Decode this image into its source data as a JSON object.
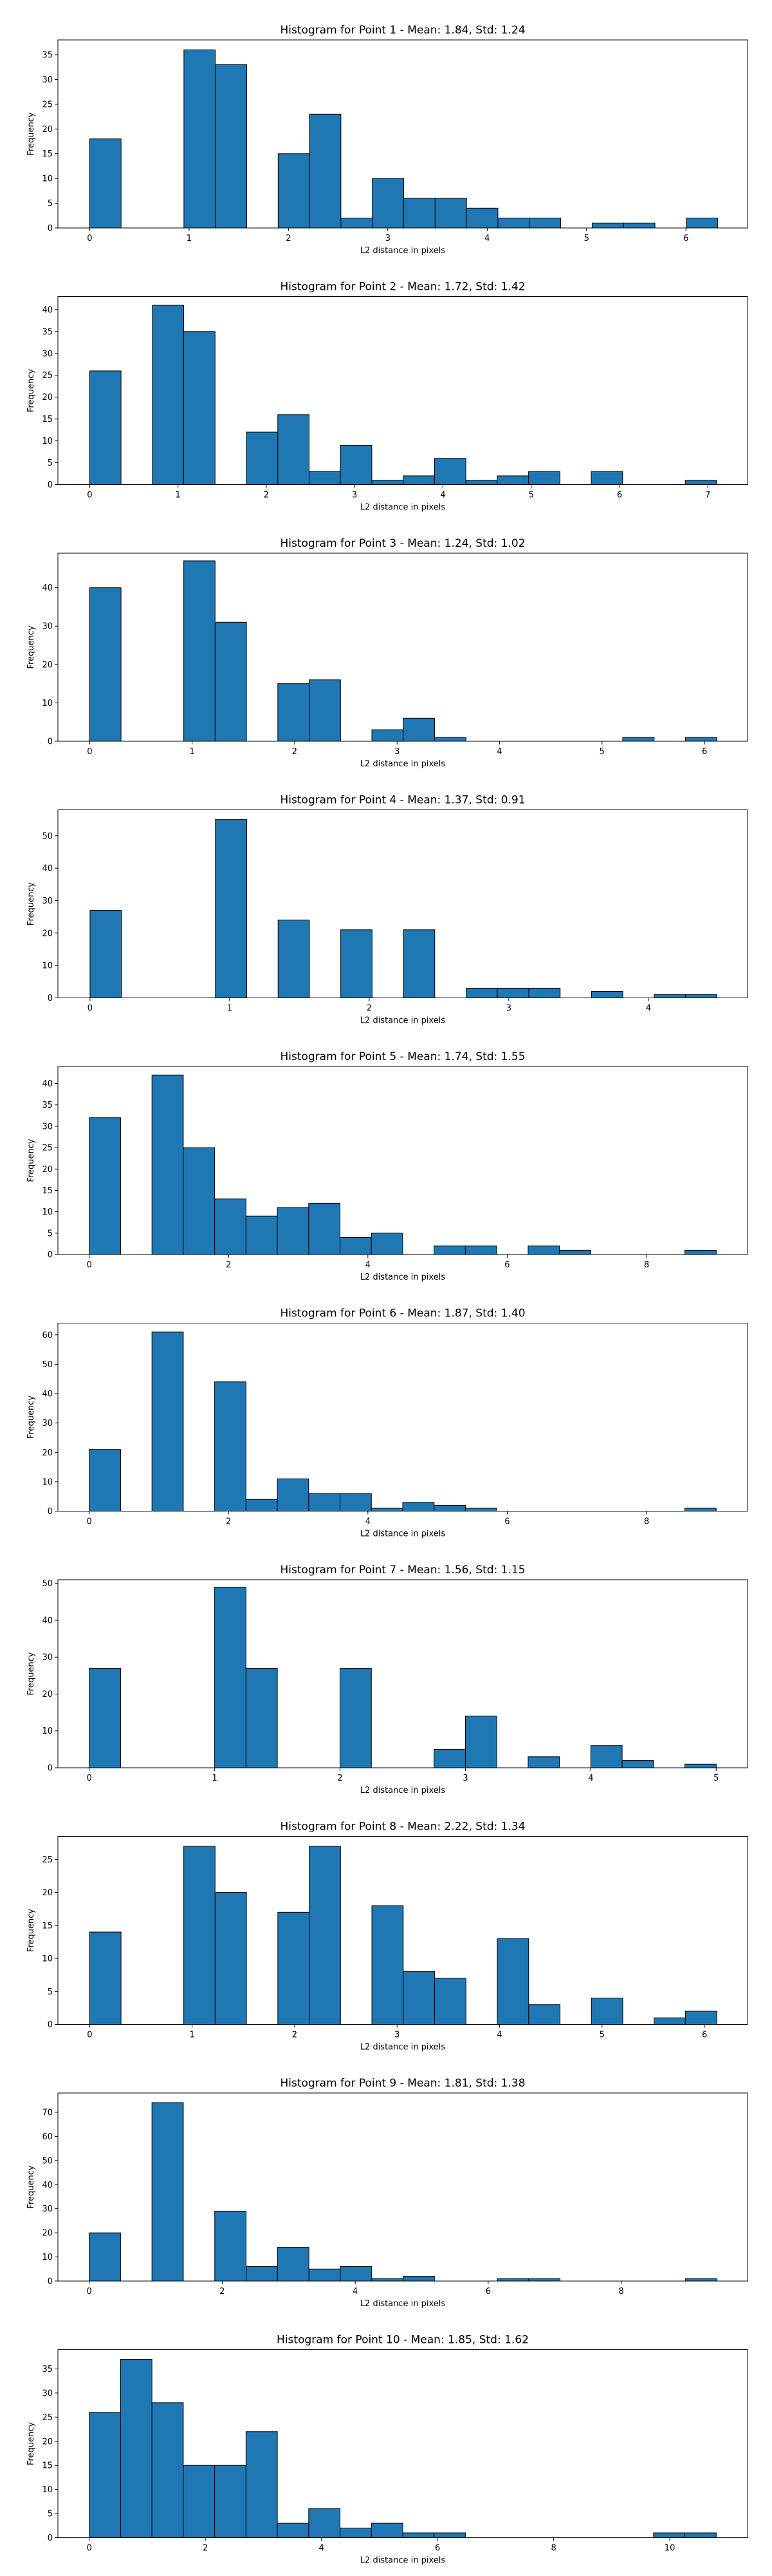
{
  "figure": {
    "bar_color": "#1f77b4",
    "edge_color": "#000000"
  },
  "chart_data": [
    {
      "type": "bar",
      "title": "Histogram for Point 1 - Mean: 1.84, Std: 1.24",
      "xlabel": "L2 distance in pixels",
      "ylabel": "Frequency",
      "xlim": [
        -0.32,
        6.62
      ],
      "ylim": [
        0,
        38
      ],
      "xticks": [
        0,
        1,
        2,
        3,
        4,
        5,
        6
      ],
      "yticks": [
        0,
        5,
        10,
        15,
        20,
        25,
        30,
        35
      ],
      "bin_edges": [
        0.0,
        0.316,
        0.632,
        0.948,
        1.264,
        1.58,
        1.896,
        2.212,
        2.528,
        2.844,
        3.16,
        3.476,
        3.792,
        4.108,
        4.424,
        4.74,
        5.056,
        5.372,
        5.688,
        6.004,
        6.32
      ],
      "values": [
        18,
        0,
        0,
        36,
        33,
        0,
        15,
        23,
        2,
        10,
        6,
        6,
        4,
        2,
        2,
        0,
        1,
        1,
        0,
        2
      ]
    },
    {
      "type": "bar",
      "title": "Histogram for Point 2 - Mean: 1.72, Std: 1.42",
      "xlabel": "L2 distance in pixels",
      "ylabel": "Frequency",
      "xlim": [
        -0.36,
        7.45
      ],
      "ylim": [
        0,
        43
      ],
      "xticks": [
        0,
        1,
        2,
        3,
        4,
        5,
        6,
        7
      ],
      "yticks": [
        0,
        5,
        10,
        15,
        20,
        25,
        30,
        35,
        40
      ],
      "bin_edges": [
        0.0,
        0.355,
        0.71,
        1.065,
        1.42,
        1.775,
        2.13,
        2.485,
        2.84,
        3.195,
        3.55,
        3.905,
        4.26,
        4.615,
        4.97,
        5.325,
        5.68,
        6.035,
        6.39,
        6.745,
        7.1
      ],
      "values": [
        26,
        0,
        41,
        35,
        0,
        12,
        16,
        3,
        9,
        1,
        2,
        6,
        1,
        2,
        3,
        0,
        3,
        0,
        0,
        1
      ]
    },
    {
      "type": "bar",
      "title": "Histogram for Point 3 - Mean: 1.24, Std: 1.02",
      "xlabel": "L2 distance in pixels",
      "ylabel": "Frequency",
      "xlim": [
        -0.31,
        6.42
      ],
      "ylim": [
        0,
        49
      ],
      "xticks": [
        0,
        1,
        2,
        3,
        4,
        5,
        6
      ],
      "yticks": [
        0,
        10,
        20,
        30,
        40
      ],
      "bin_edges": [
        0.0,
        0.306,
        0.612,
        0.918,
        1.224,
        1.53,
        1.836,
        2.142,
        2.448,
        2.754,
        3.06,
        3.366,
        3.672,
        3.978,
        4.284,
        4.59,
        4.896,
        5.202,
        5.508,
        5.814,
        6.12
      ],
      "values": [
        40,
        0,
        0,
        47,
        31,
        0,
        15,
        16,
        0,
        3,
        6,
        1,
        0,
        0,
        0,
        0,
        0,
        1,
        0,
        1
      ]
    },
    {
      "type": "bar",
      "title": "Histogram for Point 4 - Mean: 1.37, Std: 0.91",
      "xlabel": "L2 distance in pixels",
      "ylabel": "Frequency",
      "xlim": [
        -0.23,
        4.71
      ],
      "ylim": [
        0,
        58
      ],
      "xticks": [
        0,
        1,
        2,
        3,
        4
      ],
      "yticks": [
        0,
        10,
        20,
        30,
        40,
        50
      ],
      "bin_edges": [
        0.0,
        0.2245,
        0.449,
        0.6735,
        0.898,
        1.1225,
        1.347,
        1.5715,
        1.796,
        2.0205,
        2.245,
        2.4695,
        2.694,
        2.9185,
        3.143,
        3.3675,
        3.592,
        3.8165,
        4.041,
        4.2655,
        4.49
      ],
      "values": [
        27,
        0,
        0,
        0,
        55,
        0,
        24,
        0,
        21,
        0,
        21,
        0,
        3,
        3,
        3,
        0,
        2,
        0,
        1,
        1
      ]
    },
    {
      "type": "bar",
      "title": "Histogram for Point 5 - Mean: 1.74, Std: 1.55",
      "xlabel": "L2 distance in pixels",
      "ylabel": "Frequency",
      "xlim": [
        -0.45,
        9.45
      ],
      "ylim": [
        0,
        44
      ],
      "xticks": [
        0,
        2,
        4,
        6,
        8
      ],
      "yticks": [
        0,
        5,
        10,
        15,
        20,
        25,
        30,
        35,
        40
      ],
      "bin_edges": [
        0.0,
        0.45,
        0.9,
        1.35,
        1.8,
        2.25,
        2.7,
        3.15,
        3.6,
        4.05,
        4.5,
        4.95,
        5.4,
        5.85,
        6.3,
        6.75,
        7.2,
        7.65,
        8.1,
        8.55,
        9.0
      ],
      "values": [
        32,
        0,
        42,
        25,
        13,
        9,
        11,
        12,
        4,
        5,
        0,
        2,
        2,
        0,
        2,
        1,
        0,
        0,
        0,
        1
      ]
    },
    {
      "type": "bar",
      "title": "Histogram for Point 6 - Mean: 1.87, Std: 1.40",
      "xlabel": "L2 distance in pixels",
      "ylabel": "Frequency",
      "xlim": [
        -0.45,
        9.45
      ],
      "ylim": [
        0,
        64
      ],
      "xticks": [
        0,
        2,
        4,
        6,
        8
      ],
      "yticks": [
        0,
        10,
        20,
        30,
        40,
        50,
        60
      ],
      "bin_edges": [
        0.0,
        0.45,
        0.9,
        1.35,
        1.8,
        2.25,
        2.7,
        3.15,
        3.6,
        4.05,
        4.5,
        4.95,
        5.4,
        5.85,
        6.3,
        6.75,
        7.2,
        7.65,
        8.1,
        8.55,
        9.0
      ],
      "values": [
        21,
        0,
        61,
        0,
        44,
        4,
        11,
        6,
        6,
        1,
        3,
        2,
        1,
        0,
        0,
        0,
        0,
        0,
        0,
        1
      ]
    },
    {
      "type": "bar",
      "title": "Histogram for Point 7 - Mean: 1.56, Std: 1.15",
      "xlabel": "L2 distance in pixels",
      "ylabel": "Frequency",
      "xlim": [
        -0.25,
        5.25
      ],
      "ylim": [
        0,
        51
      ],
      "xticks": [
        0,
        1,
        2,
        3,
        4,
        5
      ],
      "yticks": [
        0,
        10,
        20,
        30,
        40,
        50
      ],
      "bin_edges": [
        0.0,
        0.25,
        0.5,
        0.75,
        1.0,
        1.25,
        1.5,
        1.75,
        2.0,
        2.25,
        2.5,
        2.75,
        3.0,
        3.25,
        3.5,
        3.75,
        4.0,
        4.25,
        4.5,
        4.75,
        5.0
      ],
      "values": [
        27,
        0,
        0,
        0,
        49,
        27,
        0,
        0,
        27,
        0,
        0,
        5,
        14,
        0,
        3,
        0,
        6,
        2,
        0,
        1
      ]
    },
    {
      "type": "bar",
      "title": "Histogram for Point 8 - Mean: 2.22, Std: 1.34",
      "xlabel": "L2 distance in pixels",
      "ylabel": "Frequency",
      "xlim": [
        -0.31,
        6.42
      ],
      "ylim": [
        0,
        28.5
      ],
      "xticks": [
        0,
        1,
        2,
        3,
        4,
        5,
        6
      ],
      "yticks": [
        0,
        5,
        10,
        15,
        20,
        25
      ],
      "bin_edges": [
        0.0,
        0.306,
        0.612,
        0.918,
        1.224,
        1.53,
        1.836,
        2.142,
        2.448,
        2.754,
        3.06,
        3.366,
        3.672,
        3.978,
        4.284,
        4.59,
        4.896,
        5.202,
        5.508,
        5.814,
        6.12
      ],
      "values": [
        14,
        0,
        0,
        27,
        20,
        0,
        17,
        27,
        0,
        18,
        8,
        7,
        0,
        13,
        3,
        0,
        4,
        0,
        1,
        2
      ]
    },
    {
      "type": "bar",
      "title": "Histogram for Point 9 - Mean: 1.81, Std: 1.38",
      "xlabel": "L2 distance in pixels",
      "ylabel": "Frequency",
      "xlim": [
        -0.47,
        9.9
      ],
      "ylim": [
        0,
        78
      ],
      "xticks": [
        0,
        2,
        4,
        6,
        8
      ],
      "yticks": [
        0,
        10,
        20,
        30,
        40,
        50,
        60,
        70
      ],
      "bin_edges": [
        0.0,
        0.472,
        0.944,
        1.416,
        1.888,
        2.36,
        2.832,
        3.304,
        3.776,
        4.248,
        4.72,
        5.192,
        5.664,
        6.136,
        6.608,
        7.08,
        7.552,
        8.024,
        8.496,
        8.968,
        9.44
      ],
      "values": [
        20,
        0,
        74,
        0,
        29,
        6,
        14,
        5,
        6,
        1,
        2,
        0,
        0,
        1,
        1,
        0,
        0,
        0,
        0,
        1
      ]
    },
    {
      "type": "bar",
      "title": "Histogram for Point 10 - Mean: 1.85, Std: 1.62",
      "xlabel": "L2 distance in pixels",
      "ylabel": "Frequency",
      "xlim": [
        -0.54,
        11.34
      ],
      "ylim": [
        0,
        39
      ],
      "xticks": [
        0,
        2,
        4,
        6,
        8,
        10
      ],
      "yticks": [
        0,
        5,
        10,
        15,
        20,
        25,
        30,
        35
      ],
      "bin_edges": [
        0.0,
        0.54,
        1.08,
        1.62,
        2.16,
        2.7,
        3.24,
        3.78,
        4.32,
        4.86,
        5.4,
        5.94,
        6.48,
        7.02,
        7.56,
        8.1,
        8.64,
        9.18,
        9.72,
        10.26,
        10.8
      ],
      "values": [
        26,
        37,
        28,
        15,
        15,
        22,
        3,
        6,
        2,
        3,
        1,
        1,
        0,
        0,
        0,
        0,
        0,
        0,
        1,
        1
      ]
    }
  ]
}
